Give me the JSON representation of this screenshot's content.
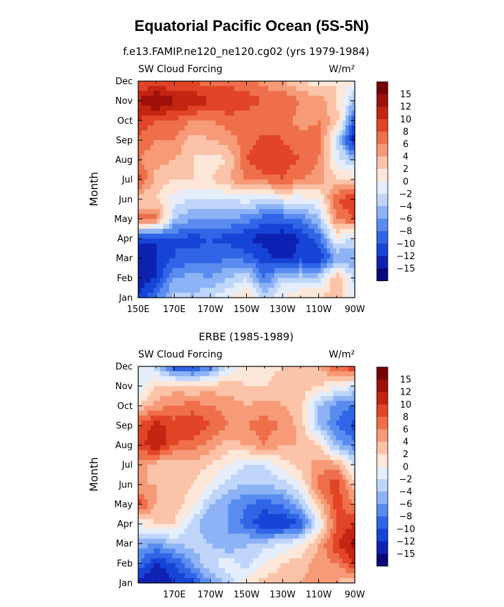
{
  "figure": {
    "title": "Equatorial Pacific Ocean (5S-5N)"
  },
  "palette": [
    "#08087a",
    "#0d22b3",
    "#1744d6",
    "#2f65e6",
    "#5a8cf0",
    "#8db3f6",
    "#bfd6fa",
    "#e4eefc",
    "#fde7d8",
    "#fbc3a8",
    "#f69a78",
    "#ef6f4b",
    "#e14426",
    "#c42412",
    "#9e0f09",
    "#760303"
  ],
  "chart_data": [
    {
      "type": "heatmap",
      "title": "f.e13.FAMIP.ne120_ne120.cg02 (yrs 1979-1984)",
      "left_label": "SW Cloud Forcing",
      "units_label": "W/m²",
      "ylabel": "Month",
      "xlabel": "",
      "x_tick_labels": [
        "150E",
        "170E",
        "170W",
        "150W",
        "130W",
        "110W",
        "90W"
      ],
      "x_ticks_lon": [
        150,
        170,
        190,
        210,
        230,
        250,
        270
      ],
      "x_range_lon": [
        150,
        270
      ],
      "y_tick_labels": [
        "Jan",
        "Feb",
        "Mar",
        "Apr",
        "May",
        "Jun",
        "Jul",
        "Aug",
        "Sep",
        "Oct",
        "Nov",
        "Dec"
      ],
      "colorbar_levels": [
        "−15",
        "−12",
        "−10",
        "−8",
        "−6",
        "−4",
        "−2",
        "0",
        "2",
        "4",
        "6",
        "8",
        "10",
        "12",
        "15"
      ],
      "colorbar_level_values": [
        -15,
        -12,
        -10,
        -8,
        -6,
        -4,
        -2,
        0,
        2,
        4,
        6,
        8,
        10,
        12,
        15
      ],
      "lon_grid": [
        150,
        160,
        170,
        180,
        190,
        200,
        210,
        220,
        230,
        240,
        250,
        260,
        270
      ],
      "values_by_month": [
        [
          -12,
          -8,
          -3,
          -4,
          -2,
          0,
          2,
          -3,
          0,
          2,
          2,
          3,
          -1
        ],
        [
          -13,
          -12,
          -6,
          -5,
          -6,
          -4,
          -2,
          -8,
          -3,
          -3,
          -3,
          4,
          -3
        ],
        [
          -14,
          -12,
          -10,
          -9,
          -9,
          -8,
          -9,
          -11,
          -13,
          -11,
          -12,
          -6,
          -6
        ],
        [
          -11,
          -12,
          -10,
          -11,
          -10,
          -11,
          -12,
          -13,
          -14,
          -12,
          -9,
          0,
          -3
        ],
        [
          7,
          7,
          -4,
          -6,
          -6,
          -6,
          -7,
          -9,
          -9,
          -8,
          -4,
          6,
          8
        ],
        [
          2,
          2,
          -1,
          -2,
          -2,
          -2,
          -1,
          -2,
          -1,
          -1,
          0,
          8,
          10
        ],
        [
          9,
          3,
          2,
          2,
          2,
          4,
          6,
          7,
          8,
          6,
          5,
          2,
          2
        ],
        [
          6,
          5,
          4,
          2,
          1,
          2,
          8,
          10,
          9,
          8,
          6,
          -1,
          -4
        ],
        [
          7,
          6,
          6,
          3,
          4,
          5,
          7,
          9,
          8,
          7,
          7,
          -2,
          -14
        ],
        [
          10,
          8,
          8,
          6,
          6,
          7,
          7,
          6,
          7,
          5,
          6,
          3,
          -10
        ],
        [
          12,
          15,
          12,
          12,
          10,
          10,
          9,
          8,
          8,
          6,
          5,
          2,
          -4
        ],
        [
          8,
          8,
          8,
          8,
          7,
          7,
          7,
          5,
          4,
          2,
          1,
          2,
          0
        ]
      ]
    },
    {
      "type": "heatmap",
      "title": "ERBE (1985-1989)",
      "left_label": "SW Cloud Forcing",
      "units_label": "W/m²",
      "ylabel": "Month",
      "xlabel": "",
      "x_tick_labels": [
        "170E",
        "170W",
        "150W",
        "130W",
        "110W",
        "90W"
      ],
      "x_ticks_lon": [
        170,
        190,
        210,
        230,
        250,
        270
      ],
      "x_range_lon": [
        150,
        270
      ],
      "y_tick_labels": [
        "Jan",
        "Feb",
        "Mar",
        "Apr",
        "May",
        "Jun",
        "Jul",
        "Aug",
        "Sep",
        "Oct",
        "Nov",
        "Dec"
      ],
      "colorbar_levels": [
        "−15",
        "−12",
        "−10",
        "−8",
        "−6",
        "−4",
        "−2",
        "0",
        "2",
        "4",
        "6",
        "8",
        "10",
        "12",
        "15"
      ],
      "colorbar_level_values": [
        -15,
        -12,
        -10,
        -8,
        -6,
        -4,
        -2,
        0,
        2,
        4,
        6,
        8,
        10,
        12,
        15
      ],
      "lon_grid": [
        150,
        160,
        170,
        180,
        190,
        200,
        210,
        220,
        230,
        240,
        250,
        260,
        270
      ],
      "values_by_month": [
        [
          -13,
          -15,
          -12,
          -11,
          -6,
          -3,
          1,
          3,
          3,
          4,
          5,
          4,
          2
        ],
        [
          -8,
          -12,
          -10,
          -6,
          -2,
          -1,
          -3,
          0,
          2,
          3,
          5,
          6,
          10
        ],
        [
          -5,
          -6,
          -4,
          -3,
          -4,
          -6,
          -4,
          -3,
          -2,
          0,
          4,
          10,
          13
        ],
        [
          0,
          2,
          2,
          -3,
          -6,
          -6,
          -9,
          -12,
          -12,
          -10,
          -1,
          8,
          10
        ],
        [
          9,
          4,
          3,
          1,
          -4,
          -6,
          -8,
          -9,
          -8,
          -4,
          3,
          9,
          6
        ],
        [
          4,
          4,
          3,
          2,
          0,
          -3,
          -4,
          -4,
          -3,
          0,
          7,
          9,
          3
        ],
        [
          5,
          3,
          2,
          3,
          2,
          0,
          -2,
          -2,
          1,
          3,
          5,
          5,
          -2
        ],
        [
          9,
          12,
          8,
          7,
          5,
          3,
          4,
          6,
          4,
          4,
          2,
          -5,
          -7
        ],
        [
          8,
          11,
          9,
          10,
          8,
          6,
          6,
          7,
          6,
          3,
          -4,
          -8,
          -11
        ],
        [
          2,
          5,
          6,
          7,
          6,
          5,
          4,
          5,
          4,
          3,
          -4,
          -7,
          -8
        ],
        [
          -2,
          2,
          3,
          2,
          3,
          3,
          2,
          2,
          3,
          3,
          2,
          0,
          -2
        ],
        [
          0,
          -3,
          -10,
          -11,
          -8,
          -2,
          1,
          1,
          2,
          2,
          4,
          8,
          10
        ]
      ]
    }
  ]
}
